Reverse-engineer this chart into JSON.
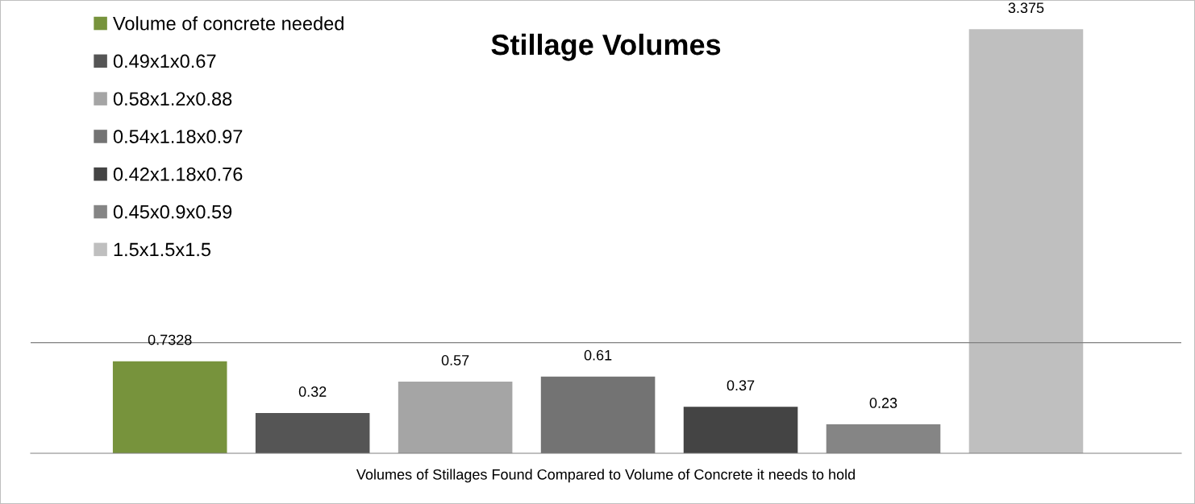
{
  "chart_data": {
    "type": "bar",
    "title": "Stillage Volumes",
    "xlabel": "Volumes of Stillages Found Compared to Volume of Concrete it needs to hold",
    "categories": [
      null
    ],
    "series": [
      {
        "name": "Volume of concrete needed",
        "color": "#77933c",
        "values": [
          0.7328
        ]
      },
      {
        "name": "0.49x1x0.67",
        "color": "#555555",
        "values": [
          0.32
        ]
      },
      {
        "name": "0.58x1.2x0.88",
        "color": "#a5a5a5",
        "values": [
          0.57
        ]
      },
      {
        "name": "0.54x1.18x0.97",
        "color": "#737373",
        "values": [
          0.61
        ]
      },
      {
        "name": "0.42x1.18x0.76",
        "color": "#444444",
        "values": [
          0.37
        ]
      },
      {
        "name": "0.45x0.9x0.59",
        "color": "#858585",
        "values": [
          0.23
        ]
      },
      {
        "name": "1.5x1.5x1.5",
        "color": "#bfbfbf",
        "values": [
          3.375
        ]
      }
    ],
    "ref_lines": [
      {
        "axis": "y",
        "value": 0.88,
        "color": "#808080"
      }
    ],
    "data_labels": true,
    "legend": "top left",
    "tick_labels": false,
    "grid": false
  }
}
